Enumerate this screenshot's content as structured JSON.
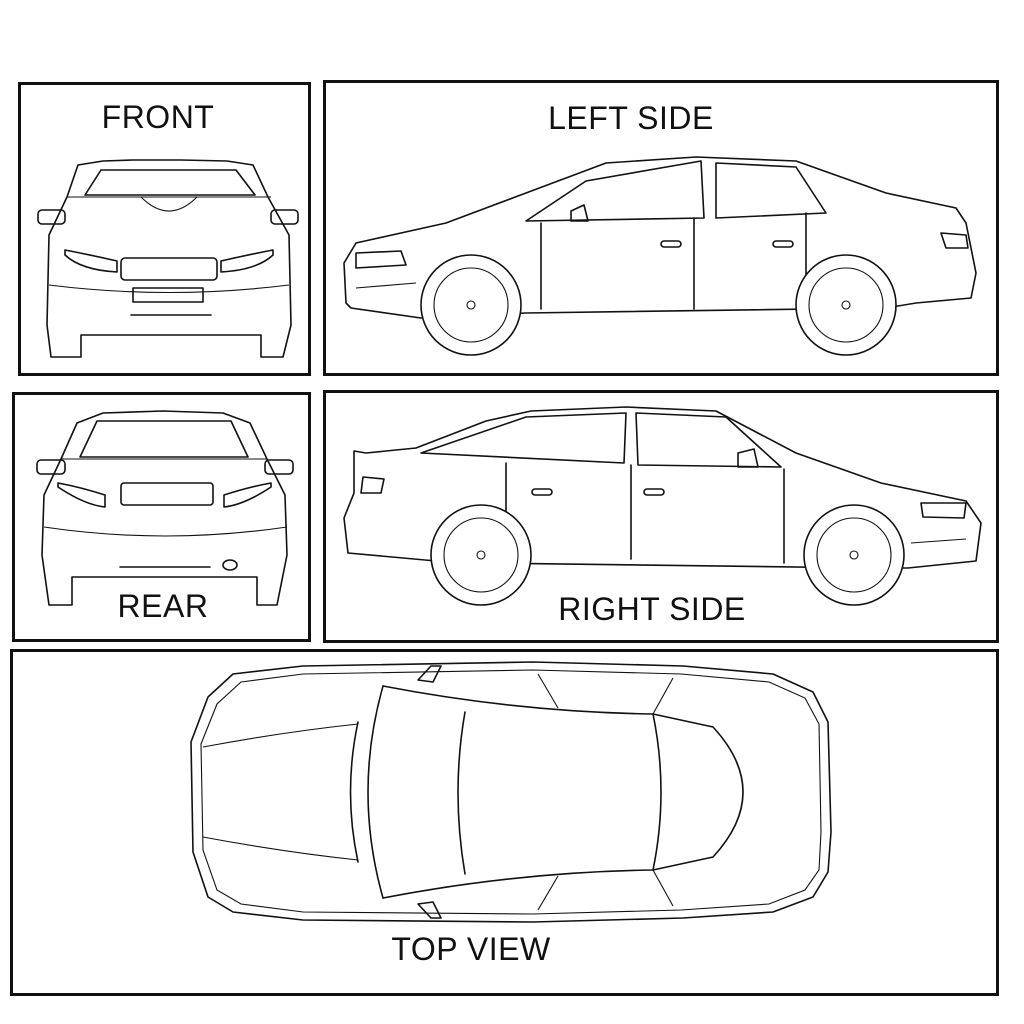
{
  "views": {
    "front": {
      "label": "FRONT"
    },
    "left_side": {
      "label": "LEFT SIDE"
    },
    "rear": {
      "label": "REAR"
    },
    "right_side": {
      "label": "RIGHT SIDE"
    },
    "top_view": {
      "label": "TOP VIEW"
    }
  },
  "colors": {
    "line": "#111111",
    "background": "#ffffff"
  }
}
